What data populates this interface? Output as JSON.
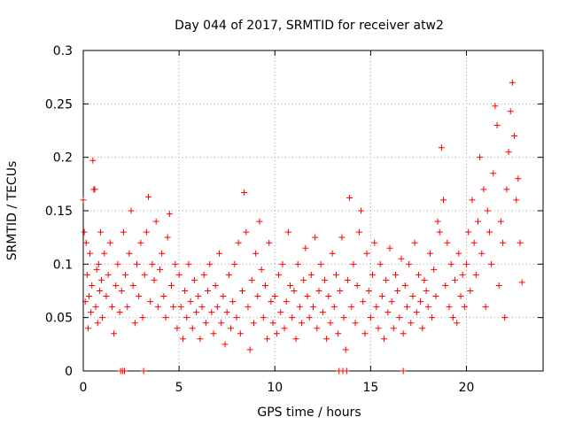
{
  "chart_data": {
    "type": "scatter",
    "title": "Day 044 of 2017, SRMTID for receiver atw2",
    "xlabel": "GPS time / hours",
    "ylabel": "SRMTID / TECUs",
    "xlim": [
      0,
      24
    ],
    "ylim": [
      0,
      0.3
    ],
    "xticks": [
      0,
      5,
      10,
      15,
      20
    ],
    "xtick_labels": [
      "0",
      "5",
      "10",
      "15",
      "20"
    ],
    "yticks": [
      0,
      0.05,
      0.1,
      0.15,
      0.2,
      0.25,
      0.3
    ],
    "ytick_labels": [
      "0",
      "0.05",
      "0.1",
      "0.15",
      "0.2",
      "0.25",
      "0.3"
    ],
    "grid": true,
    "marker": "+",
    "color": "#ff0000",
    "series": [
      {
        "name": "SRMTID",
        "points": [
          [
            0.0,
            0.16
          ],
          [
            0.05,
            0.13
          ],
          [
            0.1,
            0.065
          ],
          [
            0.15,
            0.12
          ],
          [
            0.2,
            0.09
          ],
          [
            0.25,
            0.04
          ],
          [
            0.3,
            0.07
          ],
          [
            0.35,
            0.11
          ],
          [
            0.4,
            0.055
          ],
          [
            0.45,
            0.08
          ],
          [
            0.5,
            0.197
          ],
          [
            0.55,
            0.17
          ],
          [
            0.6,
            0.17
          ],
          [
            0.65,
            0.06
          ],
          [
            0.7,
            0.095
          ],
          [
            0.75,
            0.045
          ],
          [
            0.8,
            0.1
          ],
          [
            0.85,
            0.075
          ],
          [
            0.9,
            0.13
          ],
          [
            0.95,
            0.085
          ],
          [
            1.0,
            0.05
          ],
          [
            1.1,
            0.11
          ],
          [
            1.2,
            0.07
          ],
          [
            1.3,
            0.09
          ],
          [
            1.4,
            0.12
          ],
          [
            1.5,
            0.06
          ],
          [
            1.6,
            0.035
          ],
          [
            1.7,
            0.08
          ],
          [
            1.8,
            0.1
          ],
          [
            1.9,
            0.055
          ],
          [
            2.0,
            0.075
          ],
          [
            2.1,
            0.13
          ],
          [
            2.2,
            0.09
          ],
          [
            2.3,
            0.06
          ],
          [
            2.4,
            0.11
          ],
          [
            2.5,
            0.15
          ],
          [
            2.6,
            0.08
          ],
          [
            2.7,
            0.045
          ],
          [
            2.8,
            0.1
          ],
          [
            2.9,
            0.07
          ],
          [
            3.0,
            0.12
          ],
          [
            3.1,
            0.05
          ],
          [
            3.2,
            0.09
          ],
          [
            3.3,
            0.13
          ],
          [
            3.4,
            0.163
          ],
          [
            3.5,
            0.065
          ],
          [
            3.6,
            0.1
          ],
          [
            3.7,
            0.085
          ],
          [
            3.8,
            0.14
          ],
          [
            3.9,
            0.06
          ],
          [
            4.0,
            0.095
          ],
          [
            4.1,
            0.11
          ],
          [
            4.2,
            0.07
          ],
          [
            4.3,
            0.05
          ],
          [
            4.4,
            0.125
          ],
          [
            4.5,
            0.147
          ],
          [
            4.6,
            0.08
          ],
          [
            4.7,
            0.06
          ],
          [
            4.8,
            0.1
          ],
          [
            4.9,
            0.04
          ],
          [
            5.0,
            0.09
          ],
          [
            5.1,
            0.06
          ],
          [
            5.2,
            0.03
          ],
          [
            5.3,
            0.075
          ],
          [
            5.4,
            0.05
          ],
          [
            5.5,
            0.1
          ],
          [
            5.6,
            0.065
          ],
          [
            5.7,
            0.04
          ],
          [
            5.8,
            0.085
          ],
          [
            5.9,
            0.055
          ],
          [
            6.0,
            0.07
          ],
          [
            6.1,
            0.03
          ],
          [
            6.2,
            0.06
          ],
          [
            6.3,
            0.09
          ],
          [
            6.4,
            0.045
          ],
          [
            6.5,
            0.075
          ],
          [
            6.6,
            0.1
          ],
          [
            6.7,
            0.055
          ],
          [
            6.8,
            0.035
          ],
          [
            6.9,
            0.08
          ],
          [
            7.0,
            0.06
          ],
          [
            7.1,
            0.11
          ],
          [
            7.2,
            0.045
          ],
          [
            7.3,
            0.07
          ],
          [
            7.4,
            0.025
          ],
          [
            7.5,
            0.055
          ],
          [
            7.6,
            0.09
          ],
          [
            7.7,
            0.04
          ],
          [
            7.8,
            0.065
          ],
          [
            7.9,
            0.1
          ],
          [
            8.0,
            0.05
          ],
          [
            8.1,
            0.12
          ],
          [
            8.2,
            0.035
          ],
          [
            8.3,
            0.075
          ],
          [
            8.4,
            0.167
          ],
          [
            8.5,
            0.13
          ],
          [
            8.6,
            0.06
          ],
          [
            8.7,
            0.02
          ],
          [
            8.8,
            0.085
          ],
          [
            8.9,
            0.045
          ],
          [
            9.0,
            0.11
          ],
          [
            9.1,
            0.07
          ],
          [
            9.2,
            0.14
          ],
          [
            9.3,
            0.095
          ],
          [
            9.4,
            0.05
          ],
          [
            9.5,
            0.08
          ],
          [
            9.6,
            0.03
          ],
          [
            9.7,
            0.12
          ],
          [
            9.8,
            0.065
          ],
          [
            9.9,
            0.045
          ],
          [
            10.0,
            0.07
          ],
          [
            10.1,
            0.035
          ],
          [
            10.2,
            0.09
          ],
          [
            10.3,
            0.055
          ],
          [
            10.4,
            0.1
          ],
          [
            10.5,
            0.04
          ],
          [
            10.6,
            0.065
          ],
          [
            10.7,
            0.13
          ],
          [
            10.8,
            0.08
          ],
          [
            10.9,
            0.05
          ],
          [
            11.0,
            0.075
          ],
          [
            11.1,
            0.03
          ],
          [
            11.2,
            0.1
          ],
          [
            11.3,
            0.06
          ],
          [
            11.4,
            0.045
          ],
          [
            11.5,
            0.085
          ],
          [
            11.6,
            0.115
          ],
          [
            11.7,
            0.07
          ],
          [
            11.8,
            0.05
          ],
          [
            11.9,
            0.09
          ],
          [
            12.0,
            0.06
          ],
          [
            12.1,
            0.125
          ],
          [
            12.2,
            0.04
          ],
          [
            12.3,
            0.075
          ],
          [
            12.4,
            0.1
          ],
          [
            12.5,
            0.055
          ],
          [
            12.6,
            0.085
          ],
          [
            12.7,
            0.03
          ],
          [
            12.8,
            0.07
          ],
          [
            12.9,
            0.045
          ],
          [
            13.0,
            0.11
          ],
          [
            13.1,
            0.06
          ],
          [
            13.2,
            0.09
          ],
          [
            13.3,
            0.035
          ],
          [
            13.4,
            0.075
          ],
          [
            13.5,
            0.125
          ],
          [
            13.6,
            0.05
          ],
          [
            13.7,
            0.02
          ],
          [
            13.8,
            0.085
          ],
          [
            13.9,
            0.162
          ],
          [
            14.0,
            0.06
          ],
          [
            14.1,
            0.1
          ],
          [
            14.2,
            0.045
          ],
          [
            14.3,
            0.08
          ],
          [
            14.4,
            0.13
          ],
          [
            14.5,
            0.15
          ],
          [
            14.6,
            0.065
          ],
          [
            14.7,
            0.035
          ],
          [
            14.8,
            0.11
          ],
          [
            14.9,
            0.075
          ],
          [
            15.0,
            0.05
          ],
          [
            15.1,
            0.09
          ],
          [
            15.2,
            0.12
          ],
          [
            15.3,
            0.06
          ],
          [
            15.4,
            0.04
          ],
          [
            15.5,
            0.1
          ],
          [
            15.6,
            0.07
          ],
          [
            15.7,
            0.03
          ],
          [
            15.8,
            0.085
          ],
          [
            15.9,
            0.055
          ],
          [
            16.0,
            0.115
          ],
          [
            16.1,
            0.065
          ],
          [
            16.2,
            0.04
          ],
          [
            16.3,
            0.09
          ],
          [
            16.4,
            0.075
          ],
          [
            16.5,
            0.05
          ],
          [
            16.6,
            0.105
          ],
          [
            16.7,
            0.035
          ],
          [
            16.8,
            0.08
          ],
          [
            16.9,
            0.06
          ],
          [
            17.0,
            0.1
          ],
          [
            17.1,
            0.045
          ],
          [
            17.2,
            0.07
          ],
          [
            17.3,
            0.12
          ],
          [
            17.4,
            0.055
          ],
          [
            17.5,
            0.09
          ],
          [
            17.6,
            0.065
          ],
          [
            17.7,
            0.04
          ],
          [
            17.8,
            0.085
          ],
          [
            17.9,
            0.075
          ],
          [
            18.0,
            0.06
          ],
          [
            18.1,
            0.11
          ],
          [
            18.2,
            0.05
          ],
          [
            18.3,
            0.095
          ],
          [
            18.4,
            0.07
          ],
          [
            18.5,
            0.14
          ],
          [
            18.6,
            0.13
          ],
          [
            18.7,
            0.209
          ],
          [
            18.8,
            0.16
          ],
          [
            18.9,
            0.08
          ],
          [
            19.0,
            0.12
          ],
          [
            19.1,
            0.06
          ],
          [
            19.2,
            0.1
          ],
          [
            19.3,
            0.05
          ],
          [
            19.4,
            0.085
          ],
          [
            19.5,
            0.045
          ],
          [
            19.6,
            0.11
          ],
          [
            19.7,
            0.07
          ],
          [
            19.8,
            0.09
          ],
          [
            19.9,
            0.06
          ],
          [
            20.0,
            0.1
          ],
          [
            20.1,
            0.13
          ],
          [
            20.2,
            0.075
          ],
          [
            20.3,
            0.16
          ],
          [
            20.4,
            0.12
          ],
          [
            20.5,
            0.09
          ],
          [
            20.6,
            0.14
          ],
          [
            20.7,
            0.2
          ],
          [
            20.8,
            0.11
          ],
          [
            20.9,
            0.17
          ],
          [
            21.0,
            0.06
          ],
          [
            21.1,
            0.15
          ],
          [
            21.2,
            0.13
          ],
          [
            21.3,
            0.1
          ],
          [
            21.4,
            0.185
          ],
          [
            21.5,
            0.248
          ],
          [
            21.6,
            0.23
          ],
          [
            21.7,
            0.08
          ],
          [
            21.8,
            0.14
          ],
          [
            21.9,
            0.12
          ],
          [
            22.0,
            0.05
          ],
          [
            22.1,
            0.17
          ],
          [
            22.2,
            0.205
          ],
          [
            22.3,
            0.243
          ],
          [
            22.4,
            0.27
          ],
          [
            22.5,
            0.22
          ],
          [
            22.6,
            0.16
          ],
          [
            22.7,
            0.18
          ],
          [
            22.8,
            0.12
          ],
          [
            22.9,
            0.083
          ],
          [
            1.95,
            0.0
          ],
          [
            2.05,
            0.0
          ],
          [
            2.15,
            0.0
          ],
          [
            3.15,
            0.0
          ],
          [
            13.35,
            0.0
          ],
          [
            13.55,
            0.0
          ],
          [
            13.75,
            0.0
          ],
          [
            16.7,
            0.0
          ]
        ]
      }
    ]
  }
}
